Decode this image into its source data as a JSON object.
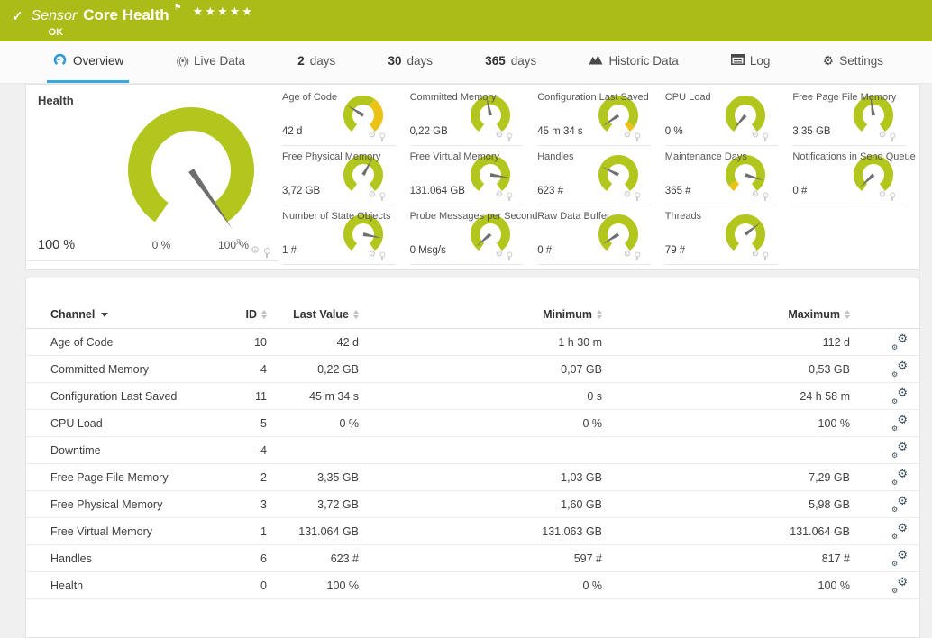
{
  "colors": {
    "brand_green": "#abbb17",
    "gauge_green": "#b2c61d",
    "warn_yellow": "#ecc215",
    "accent_blue": "#35aadc",
    "needle_gray": "#6e6e6e"
  },
  "header": {
    "check_icon": "✓",
    "type_label": "Sensor",
    "title": "Core Health",
    "flag_icon": "⚑",
    "stars": "★★★★★",
    "status": "OK"
  },
  "tabs": [
    {
      "id": "overview",
      "label": "Overview",
      "icon": "gauge-icon",
      "active": true
    },
    {
      "id": "live-data",
      "label": "Live Data",
      "icon": "live-icon",
      "active": false
    },
    {
      "id": "2-days",
      "num": "2",
      "label": "days",
      "active": false
    },
    {
      "id": "30-days",
      "num": "30",
      "label": "days",
      "active": false
    },
    {
      "id": "365-days",
      "num": "365",
      "label": "days",
      "active": false
    },
    {
      "id": "historic-data",
      "label": "Historic Data",
      "icon": "chart-icon",
      "active": false
    },
    {
      "id": "log",
      "label": "Log",
      "icon": "log-icon",
      "active": false
    },
    {
      "id": "settings",
      "label": "Settings",
      "icon": "settings-icon",
      "active": false
    }
  ],
  "health": {
    "title": "Health",
    "value": "100 %",
    "scale_min": "0 %",
    "scale_max": "100 %",
    "avg_marker": "x̄",
    "needle": 1,
    "segments": [
      {
        "from": 0,
        "to": 1,
        "color": "green"
      }
    ]
  },
  "mini_gauges": [
    {
      "label": "Age of Code",
      "value": "42 d",
      "needle": 0.3,
      "segments": [
        {
          "from": 0,
          "to": 0.62,
          "color": "green"
        },
        {
          "from": 0.62,
          "to": 1,
          "color": "yellow"
        }
      ]
    },
    {
      "label": "Committed Memory",
      "value": "0,22 GB",
      "needle": 0.46,
      "segments": [
        {
          "from": 0,
          "to": 1,
          "color": "green"
        }
      ]
    },
    {
      "label": "Configuration Last Saved",
      "value": "45 m 34 s",
      "needle": 0.07,
      "segments": [
        {
          "from": 0,
          "to": 0.93,
          "color": "green"
        },
        {
          "from": 0.93,
          "to": 1,
          "color": "yellow"
        }
      ]
    },
    {
      "label": "CPU Load",
      "value": "0 %",
      "needle": 0.02,
      "segments": [
        {
          "from": 0,
          "to": 1,
          "color": "green"
        }
      ]
    },
    {
      "label": "Free Page File Memory",
      "value": "3,35 GB",
      "needle": 0.47,
      "segments": [
        {
          "from": 0,
          "to": 1,
          "color": "green"
        }
      ]
    },
    {
      "label": "Free Physical Memory",
      "value": "3,72 GB",
      "needle": 0.6,
      "segments": [
        {
          "from": 0,
          "to": 1,
          "color": "green"
        }
      ]
    },
    {
      "label": "Free Virtual Memory",
      "value": "131.064 GB",
      "needle": 0.84,
      "segments": [
        {
          "from": 0,
          "to": 1,
          "color": "green"
        }
      ]
    },
    {
      "label": "Handles",
      "value": "623 #",
      "needle": 0.28,
      "segments": [
        {
          "from": 0,
          "to": 1,
          "color": "green"
        }
      ]
    },
    {
      "label": "Maintenance Days",
      "value": "365 #",
      "needle": 0.87,
      "segments": [
        {
          "from": 0,
          "to": 0.08,
          "color": "yellow"
        },
        {
          "from": 0.08,
          "to": 1,
          "color": "green"
        }
      ]
    },
    {
      "label": "Notifications in Send Queue",
      "value": "0 #",
      "needle": 0.04,
      "segments": [
        {
          "from": 0,
          "to": 1,
          "color": "green"
        }
      ]
    },
    {
      "label": "Number of State Objects",
      "value": "1 #",
      "needle": 0.85,
      "segments": [
        {
          "from": 0,
          "to": 1,
          "color": "green"
        }
      ]
    },
    {
      "label": "Probe Messages per Second",
      "value": "0 Msg/s",
      "needle": 0.05,
      "segments": [
        {
          "from": 0,
          "to": 1,
          "color": "green"
        }
      ]
    },
    {
      "label": "Raw Data Buffer",
      "value": "0 #",
      "needle": 0.08,
      "segments": [
        {
          "from": 0,
          "to": 1,
          "color": "green"
        }
      ]
    },
    {
      "label": "Threads",
      "value": "79 #",
      "needle": 0.68,
      "segments": [
        {
          "from": 0,
          "to": 1,
          "color": "green"
        }
      ]
    }
  ],
  "table": {
    "columns": [
      {
        "key": "channel",
        "label": "Channel",
        "sorted": true
      },
      {
        "key": "id",
        "label": "ID",
        "sorted": false
      },
      {
        "key": "last",
        "label": "Last Value",
        "sorted": false
      },
      {
        "key": "min",
        "label": "Minimum",
        "sorted": false
      },
      {
        "key": "max",
        "label": "Maximum",
        "sorted": false
      }
    ],
    "rows": [
      {
        "channel": "Age of Code",
        "id": "10",
        "last": "42 d",
        "min": "1 h 30 m",
        "max": "112 d"
      },
      {
        "channel": "Committed Memory",
        "id": "4",
        "last": "0,22 GB",
        "min": "0,07 GB",
        "max": "0,53 GB"
      },
      {
        "channel": "Configuration Last Saved",
        "id": "11",
        "last": "45 m 34 s",
        "min": "0 s",
        "max": "24 h 58 m"
      },
      {
        "channel": "CPU Load",
        "id": "5",
        "last": "0 %",
        "min": "0 %",
        "max": "100 %"
      },
      {
        "channel": "Downtime",
        "id": "-4",
        "last": "",
        "min": "",
        "max": ""
      },
      {
        "channel": "Free Page File Memory",
        "id": "2",
        "last": "3,35 GB",
        "min": "1,03 GB",
        "max": "7,29 GB"
      },
      {
        "channel": "Free Physical Memory",
        "id": "3",
        "last": "3,72 GB",
        "min": "1,60 GB",
        "max": "5,98 GB"
      },
      {
        "channel": "Free Virtual Memory",
        "id": "1",
        "last": "131.064 GB",
        "min": "131.063 GB",
        "max": "131.064 GB"
      },
      {
        "channel": "Handles",
        "id": "6",
        "last": "623 #",
        "min": "597 #",
        "max": "817 #"
      },
      {
        "channel": "Health",
        "id": "0",
        "last": "100 %",
        "min": "0 %",
        "max": "100 %"
      }
    ]
  }
}
